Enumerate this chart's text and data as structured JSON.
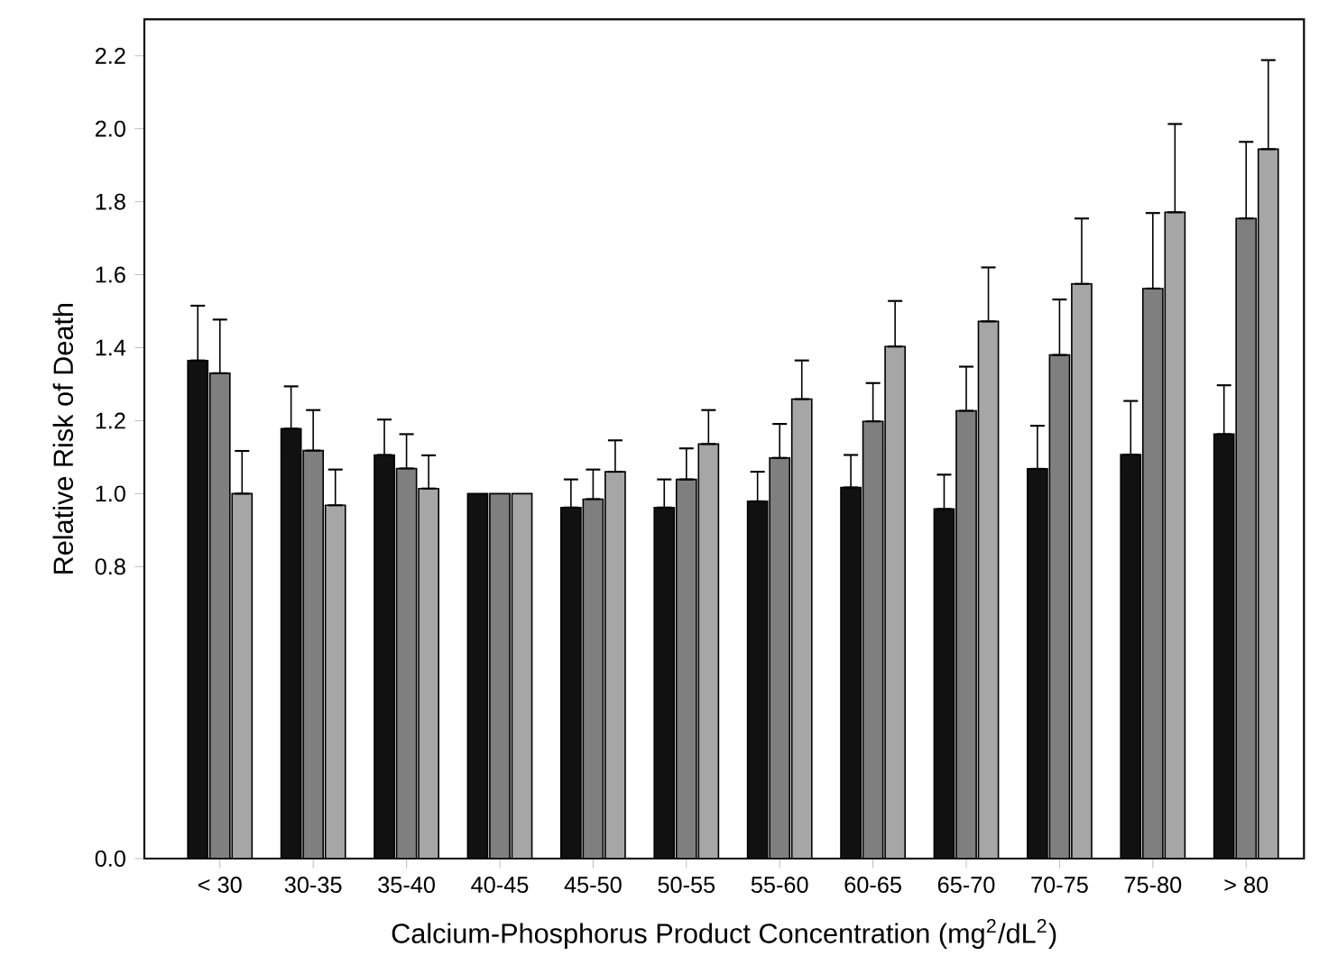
{
  "chart_data": {
    "type": "bar",
    "xlabel": "Calcium-Phosphorus Product Concentration (mg$^{2}$/dL$^{2}$)",
    "ylabel": "Relative Risk of Death",
    "categories": [
      "< 30",
      "30-35",
      "35-40",
      "40-45",
      "45-50",
      "50-55",
      "55-60",
      "60-65",
      "65-70",
      "70-75",
      "75-80",
      "> 80"
    ],
    "ylim": [
      0,
      2.3
    ],
    "yticks": [
      {
        "value": 0,
        "label": "0.0"
      },
      0.8,
      {
        "value": 1,
        "label": "1.0"
      },
      1.2,
      1.4,
      1.6,
      1.8,
      {
        "value": 2,
        "label": "2.0"
      },
      2.2
    ],
    "series": [
      {
        "color": "#111111",
        "values": [
          1.365,
          1.178,
          1.106,
          1.0,
          0.962,
          0.962,
          0.979,
          1.017,
          0.958,
          1.068,
          1.107,
          1.163
        ],
        "errors": [
          [
            1.365,
            1.515
          ],
          [
            1.178,
            1.294
          ],
          [
            1.106,
            1.203
          ],
          null,
          [
            0.962,
            1.039
          ],
          [
            0.962,
            1.039
          ],
          [
            0.979,
            1.06
          ],
          [
            1.017,
            1.106
          ],
          [
            0.958,
            1.052
          ],
          [
            1.068,
            1.186
          ],
          [
            1.107,
            1.254
          ],
          [
            1.163,
            1.297
          ]
        ]
      },
      {
        "color": "#7f7f7f",
        "values": [
          1.33,
          1.118,
          1.069,
          1.0,
          0.985,
          1.039,
          1.098,
          1.198,
          1.227,
          1.38,
          1.562,
          1.754
        ],
        "errors": [
          [
            1.33,
            1.477
          ],
          [
            1.118,
            1.229
          ],
          [
            1.069,
            1.163
          ],
          null,
          [
            0.985,
            1.066
          ],
          [
            1.039,
            1.124
          ],
          [
            1.098,
            1.191
          ],
          [
            1.198,
            1.303
          ],
          [
            1.227,
            1.348
          ],
          [
            1.38,
            1.532
          ],
          [
            1.562,
            1.769
          ],
          [
            1.754,
            1.964
          ]
        ]
      },
      {
        "color": "#a6a6a6",
        "values": [
          1.0,
          0.968,
          1.014,
          1.0,
          1.06,
          1.136,
          1.259,
          1.403,
          1.472,
          1.575,
          1.771,
          1.944
        ],
        "errors": [
          [
            1.0,
            1.117
          ],
          [
            0.968,
            1.066
          ],
          [
            1.014,
            1.105
          ],
          null,
          [
            1.06,
            1.146
          ],
          [
            1.136,
            1.229
          ],
          [
            1.259,
            1.365
          ],
          [
            1.403,
            1.528
          ],
          [
            1.472,
            1.62
          ],
          [
            1.575,
            1.754
          ],
          [
            1.771,
            2.013
          ],
          [
            1.944,
            2.188
          ]
        ]
      }
    ]
  }
}
